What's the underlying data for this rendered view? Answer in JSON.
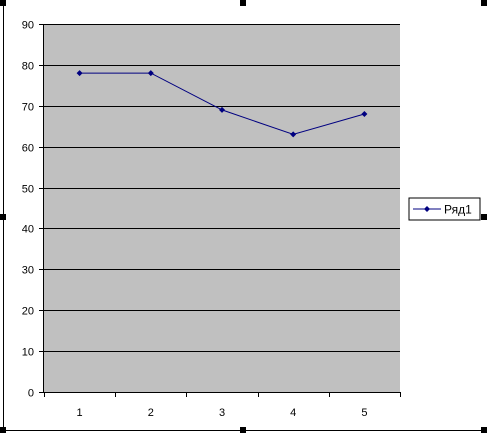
{
  "chart_data": {
    "type": "line",
    "title": "",
    "xlabel": "",
    "ylabel": "",
    "categories": [
      "1",
      "2",
      "3",
      "4",
      "5"
    ],
    "series": [
      {
        "name": "Ряд1",
        "values": [
          78,
          78,
          69,
          63,
          68
        ],
        "color": "#000080",
        "marker": "diamond"
      }
    ],
    "ylim": [
      0,
      90
    ],
    "yticks": [
      0,
      10,
      20,
      30,
      40,
      50,
      60,
      70,
      80,
      90
    ],
    "grid": true,
    "legend_position": "right",
    "plot_background": "#c0c0c0",
    "gridline_color": "#000000"
  }
}
